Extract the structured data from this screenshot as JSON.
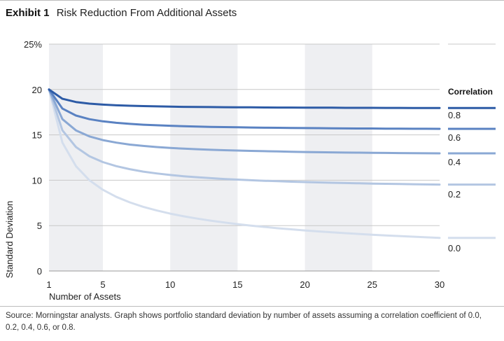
{
  "header": {
    "exhibit_label": "Exhibit 1",
    "title": "Risk Reduction From Additional Assets"
  },
  "footer": {
    "source": "Source: Morningstar analysts. Graph shows portfolio standard deviation by number of assets assuming a correlation coefficient of 0.0, 0.2, 0.4, 0.6, or 0.8."
  },
  "colors": {
    "band": "#eeeff2",
    "grid": "#c8c8c8",
    "series": [
      "#d4deed",
      "#b3c6e2",
      "#8aa8d4",
      "#5a82c2",
      "#2d5ba6"
    ]
  },
  "chart_data": {
    "type": "line",
    "xlabel": "Number of Assets",
    "ylabel": "Standard Deviation",
    "xlim": [
      1,
      30
    ],
    "ylim": [
      0,
      25
    ],
    "x_ticks": [
      1,
      5,
      10,
      15,
      20,
      25,
      30
    ],
    "y_ticks": [
      {
        "value": 0,
        "label": "0"
      },
      {
        "value": 5,
        "label": "5"
      },
      {
        "value": 10,
        "label": "10"
      },
      {
        "value": 15,
        "label": "15"
      },
      {
        "value": 20,
        "label": "20"
      },
      {
        "value": 25,
        "label": "25%"
      }
    ],
    "shaded_ranges": [
      [
        1,
        5
      ],
      [
        10,
        15
      ],
      [
        20,
        25
      ]
    ],
    "legend": {
      "title": "Correlation",
      "position": "right"
    },
    "x": [
      1,
      2,
      3,
      4,
      5,
      6,
      7,
      8,
      9,
      10,
      11,
      12,
      13,
      14,
      15,
      16,
      17,
      18,
      19,
      20,
      21,
      22,
      23,
      24,
      25,
      26,
      27,
      28,
      29,
      30
    ],
    "series": [
      {
        "name": "0.0",
        "values": [
          20.0,
          14.14,
          11.55,
          10.0,
          8.94,
          8.16,
          7.56,
          7.07,
          6.67,
          6.32,
          6.03,
          5.77,
          5.55,
          5.35,
          5.16,
          5.0,
          4.85,
          4.71,
          4.59,
          4.47,
          4.36,
          4.26,
          4.17,
          4.08,
          4.0,
          3.92,
          3.85,
          3.78,
          3.71,
          3.65
        ]
      },
      {
        "name": "0.2",
        "values": [
          20.0,
          15.49,
          13.66,
          12.65,
          12.0,
          11.55,
          11.22,
          10.95,
          10.75,
          10.58,
          10.44,
          10.33,
          10.23,
          10.14,
          10.07,
          10.0,
          9.94,
          9.89,
          9.84,
          9.8,
          9.76,
          9.72,
          9.69,
          9.66,
          9.63,
          9.61,
          9.58,
          9.56,
          9.54,
          9.52
        ]
      },
      {
        "name": "0.4",
        "values": [
          20.0,
          16.73,
          15.49,
          14.83,
          14.42,
          14.14,
          13.93,
          13.78,
          13.66,
          13.56,
          13.48,
          13.42,
          13.36,
          13.31,
          13.27,
          13.23,
          13.2,
          13.17,
          13.14,
          13.11,
          13.09,
          13.07,
          13.05,
          13.04,
          13.02,
          13.01,
          12.99,
          12.98,
          12.97,
          12.96
        ]
      },
      {
        "name": "0.6",
        "values": [
          20.0,
          17.89,
          17.13,
          16.73,
          16.49,
          16.33,
          16.21,
          16.12,
          16.06,
          16.0,
          15.95,
          15.92,
          15.88,
          15.86,
          15.83,
          15.81,
          15.79,
          15.78,
          15.76,
          15.75,
          15.74,
          15.72,
          15.71,
          15.7,
          15.7,
          15.69,
          15.68,
          15.67,
          15.67,
          15.66
        ]
      },
      {
        "name": "0.8",
        "values": [
          20.0,
          18.97,
          18.62,
          18.44,
          18.33,
          18.26,
          18.21,
          18.17,
          18.14,
          18.11,
          18.09,
          18.08,
          18.06,
          18.05,
          18.04,
          18.03,
          18.02,
          18.01,
          18.01,
          18.0,
          17.99,
          17.99,
          17.98,
          17.98,
          17.98,
          17.97,
          17.97,
          17.96,
          17.96,
          17.96
        ]
      }
    ]
  }
}
